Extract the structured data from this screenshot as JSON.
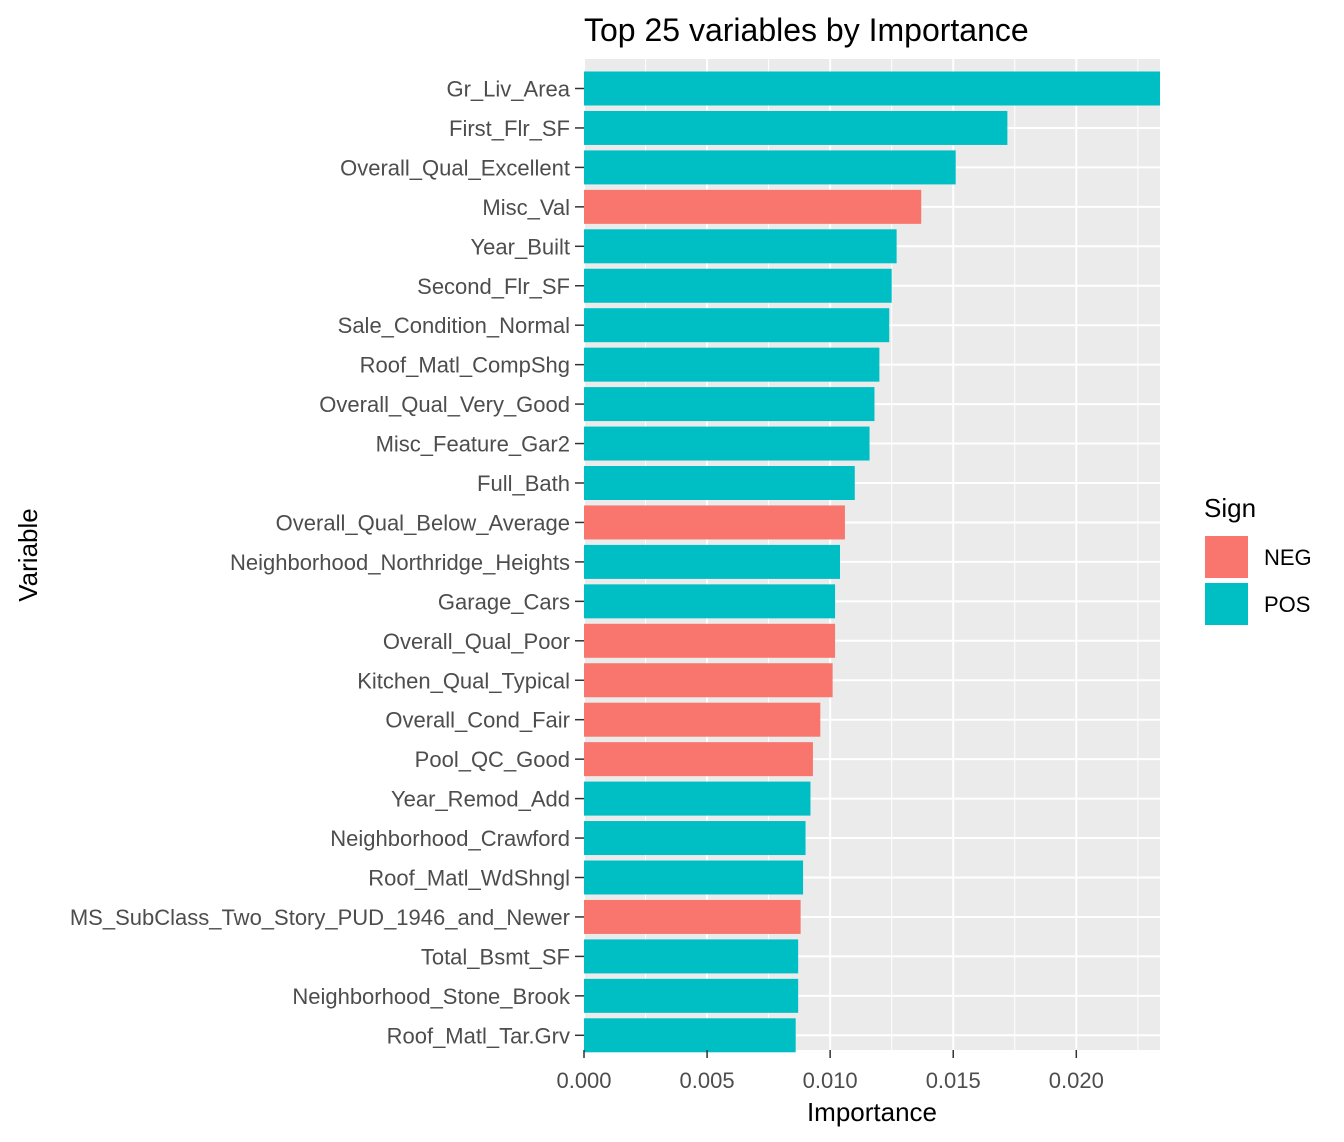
{
  "chart_data": {
    "type": "bar",
    "orientation": "horizontal",
    "title": "Top 25 variables by Importance",
    "xlabel": "Importance",
    "ylabel": "Variable",
    "xlim": [
      0,
      0.0234
    ],
    "xticks": [
      0.0,
      0.005,
      0.01,
      0.015,
      0.02
    ],
    "xtick_labels": [
      "0.000",
      "0.005",
      "0.010",
      "0.015",
      "0.020"
    ],
    "grid": true,
    "legend": {
      "title": "Sign",
      "placement": "right",
      "entries": [
        {
          "label": "NEG",
          "color": "#F8766D"
        },
        {
          "label": "POS",
          "color": "#00BFC4"
        }
      ]
    },
    "categories": [
      "Gr_Liv_Area",
      "First_Flr_SF",
      "Overall_Qual_Excellent",
      "Misc_Val",
      "Year_Built",
      "Second_Flr_SF",
      "Sale_Condition_Normal",
      "Roof_Matl_CompShg",
      "Overall_Qual_Very_Good",
      "Misc_Feature_Gar2",
      "Full_Bath",
      "Overall_Qual_Below_Average",
      "Neighborhood_Northridge_Heights",
      "Garage_Cars",
      "Overall_Qual_Poor",
      "Kitchen_Qual_Typical",
      "Overall_Cond_Fair",
      "Pool_QC_Good",
      "Year_Remod_Add",
      "Neighborhood_Crawford",
      "Roof_Matl_WdShngl",
      "MS_SubClass_Two_Story_PUD_1946_and_Newer",
      "Total_Bsmt_SF",
      "Neighborhood_Stone_Brook",
      "Roof_Matl_Tar.Grv"
    ],
    "values": [
      0.0234,
      0.0172,
      0.0151,
      0.0137,
      0.0127,
      0.0125,
      0.0124,
      0.012,
      0.0118,
      0.0116,
      0.011,
      0.0106,
      0.0104,
      0.0102,
      0.0102,
      0.0101,
      0.0096,
      0.0093,
      0.0092,
      0.009,
      0.0089,
      0.0088,
      0.0087,
      0.0087,
      0.0086
    ],
    "signs": [
      "POS",
      "POS",
      "POS",
      "NEG",
      "POS",
      "POS",
      "POS",
      "POS",
      "POS",
      "POS",
      "POS",
      "NEG",
      "POS",
      "POS",
      "NEG",
      "NEG",
      "NEG",
      "NEG",
      "POS",
      "POS",
      "POS",
      "NEG",
      "POS",
      "POS",
      "POS"
    ]
  }
}
